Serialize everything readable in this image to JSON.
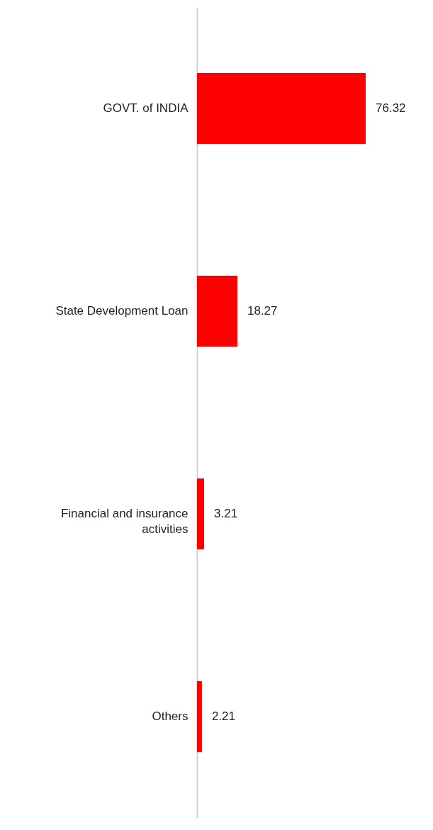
{
  "chart_data": {
    "type": "bar",
    "orientation": "horizontal",
    "categories": [
      "GOVT. of INDIA",
      "State Development Loan",
      "Financial and insurance activities",
      "Others"
    ],
    "values": [
      76.32,
      18.27,
      3.21,
      2.21
    ],
    "color": "#ff0000",
    "data_labels": true,
    "tick_labels": "y"
  }
}
